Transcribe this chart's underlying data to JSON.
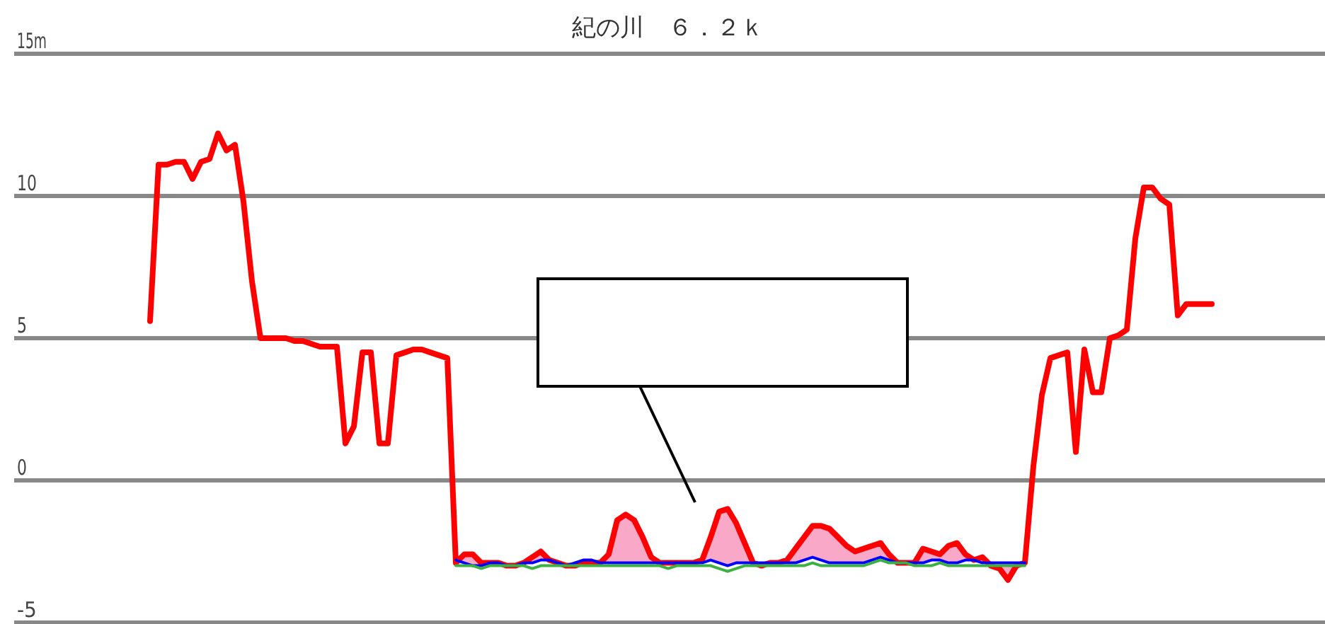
{
  "chart_data": {
    "type": "line",
    "title": "紀の川　６．２ｋ",
    "categories": [
      null,
      null,
      null,
      null,
      null,
      null,
      null,
      null,
      null,
      null,
      null,
      null,
      null,
      null,
      null,
      null,
      null,
      null,
      null,
      null,
      null,
      null,
      null,
      null,
      null,
      null,
      null,
      null,
      null,
      null,
      null,
      null,
      null,
      null,
      null,
      null,
      null,
      null,
      null,
      null,
      null,
      null,
      null,
      null,
      null,
      null,
      null,
      null,
      null,
      null,
      null,
      null,
      null,
      null,
      null,
      null,
      null,
      null,
      null,
      null,
      null,
      null,
      null,
      null,
      null,
      null,
      null,
      null,
      null,
      null,
      null,
      null,
      null,
      null,
      null,
      null,
      null,
      null,
      null,
      null,
      null,
      null,
      null,
      null,
      null,
      null,
      null,
      null,
      null,
      null,
      null,
      null,
      null,
      null,
      null,
      null,
      null,
      null,
      null,
      null,
      null,
      null,
      null,
      null,
      null,
      null,
      null,
      null,
      null,
      null,
      null,
      null,
      null,
      null,
      null,
      null,
      null,
      null,
      null,
      null,
      null,
      null,
      null,
      null,
      null,
      null,
      null,
      null,
      null,
      null,
      null,
      null,
      null,
      null,
      null,
      null,
      null,
      null,
      null,
      null,
      null,
      null,
      null,
      null,
      null,
      null,
      null,
      null,
      null,
      null,
      null,
      null,
      null,
      null,
      null
    ],
    "series": [
      {
        "color": "#ff0000",
        "values": [
          null,
          null,
          null,
          null,
          null,
          null,
          null,
          null,
          null,
          null,
          null,
          null,
          null,
          null,
          null,
          null,
          5.6,
          11.1,
          11.1,
          11.2,
          11.2,
          10.6,
          11.2,
          11.3,
          12.2,
          11.6,
          11.8,
          9.8,
          7.0,
          5.0,
          5.0,
          5.0,
          5.0,
          4.9,
          4.9,
          4.8,
          4.7,
          4.7,
          4.7,
          1.3,
          1.9,
          4.5,
          4.5,
          1.3,
          1.3,
          4.4,
          4.5,
          4.6,
          4.6,
          4.5,
          4.4,
          4.3,
          -2.9,
          -2.6,
          -2.6,
          -2.9,
          -2.9,
          -2.9,
          -3.0,
          -3.0,
          -2.9,
          -2.7,
          -2.5,
          -2.8,
          -2.9,
          -3.0,
          -3.0,
          -2.9,
          -2.9,
          -2.9,
          -2.6,
          -1.4,
          -1.2,
          -1.4,
          -2.0,
          -2.7,
          -2.9,
          -2.9,
          -2.9,
          -2.9,
          -2.9,
          -2.8,
          -2.0,
          -1.1,
          -1.0,
          -1.5,
          -2.2,
          -2.9,
          -3.0,
          -2.9,
          -2.9,
          -2.8,
          -2.4,
          -2.0,
          -1.6,
          -1.6,
          -1.7,
          -2.0,
          -2.3,
          -2.5,
          -2.4,
          -2.3,
          -2.2,
          -2.6,
          -2.9,
          -2.9,
          -2.9,
          -2.4,
          -2.5,
          -2.6,
          -2.3,
          -2.2,
          -2.6,
          -2.8,
          -2.7,
          -3.0,
          -3.1,
          -3.5,
          -3.0,
          -2.9,
          0.5,
          3.0,
          4.3,
          4.4,
          4.5,
          1.0,
          4.6,
          3.1,
          3.1,
          5.0,
          5.1,
          5.3,
          8.5,
          10.3,
          10.3,
          9.9,
          9.7,
          5.8,
          6.2,
          6.2,
          6.2,
          6.2,
          null,
          null,
          null,
          null,
          null,
          null,
          null,
          null,
          null,
          null,
          null,
          null,
          null
        ],
        "upper": [
          null,
          null,
          null,
          null,
          null,
          null,
          null,
          null,
          null,
          null,
          null,
          null,
          null,
          null,
          null,
          null,
          null,
          null,
          null,
          null,
          null,
          null,
          null,
          null,
          null,
          null,
          null,
          null,
          null,
          null,
          null,
          null,
          null,
          null,
          null,
          null,
          null,
          null,
          null,
          null,
          null,
          null,
          null,
          null,
          null,
          null,
          null,
          null,
          null,
          null,
          null,
          null,
          -2.9,
          -2.6,
          -2.6,
          -2.9,
          -2.9,
          -2.9,
          -3.0,
          -3.0,
          -2.9,
          -2.7,
          -2.5,
          -2.8,
          -2.9,
          -3.0,
          -3.0,
          -2.9,
          -2.9,
          -2.9,
          -2.6,
          -1.4,
          -1.2,
          -1.4,
          -2.0,
          -2.7,
          -2.9,
          -2.9,
          -2.9,
          -2.9,
          -2.9,
          -2.8,
          -2.0,
          -1.1,
          -1.0,
          -1.5,
          -2.2,
          -2.9,
          -3.0,
          -2.9,
          -2.9,
          -2.8,
          -2.4,
          -2.0,
          -1.6,
          -1.6,
          -1.7,
          -2.0,
          -2.3,
          -2.5,
          -2.4,
          -2.3,
          -2.2,
          -2.6,
          -2.9,
          -2.9,
          -2.9,
          -2.4,
          -2.5,
          -2.6,
          -2.3,
          -2.2,
          -2.6,
          -2.8,
          -2.7,
          -3.0,
          -3.1,
          -3.5,
          -3.0,
          -2.9,
          null,
          null,
          null,
          null,
          null,
          null,
          null,
          null,
          null,
          null,
          null,
          null,
          null,
          null,
          null,
          null,
          null,
          null,
          null,
          null,
          null,
          null,
          null,
          null,
          null,
          null,
          null,
          null,
          null,
          null,
          null,
          null,
          null,
          null,
          null
        ],
        "lower": [
          null,
          null,
          null,
          null,
          null,
          null,
          null,
          null,
          null,
          null,
          null,
          null,
          null,
          null,
          null,
          null,
          null,
          null,
          null,
          null,
          null,
          null,
          null,
          null,
          null,
          null,
          null,
          null,
          null,
          null,
          null,
          null,
          null,
          null,
          null,
          null,
          null,
          null,
          null,
          null,
          null,
          null,
          null,
          null,
          null,
          null,
          null,
          null,
          null,
          null,
          null,
          null,
          -2.8,
          -2.9,
          -3.0,
          -3.0,
          -2.9,
          -2.9,
          -3.0,
          -3.0,
          -2.9,
          -2.9,
          -2.8,
          -2.8,
          -2.9,
          -3.0,
          -2.9,
          -2.8,
          -2.8,
          -2.9,
          -2.9,
          -2.9,
          -2.9,
          -2.9,
          -2.9,
          -2.9,
          -2.9,
          -2.9,
          -2.9,
          -2.9,
          -2.9,
          -2.9,
          -2.8,
          -2.9,
          -3.0,
          -2.9,
          -2.9,
          -2.9,
          -2.9,
          -2.9,
          -2.9,
          -2.9,
          -2.9,
          -2.8,
          -2.7,
          -2.8,
          -2.9,
          -2.9,
          -2.9,
          -2.9,
          -2.9,
          -2.8,
          -2.7,
          -2.8,
          -2.9,
          -2.9,
          -2.9,
          -2.9,
          -2.8,
          -2.8,
          -2.9,
          -2.9,
          -2.8,
          -2.8,
          -2.9,
          -2.9,
          -2.9,
          -2.9,
          -2.9,
          -2.9,
          null,
          null,
          null,
          null,
          null,
          null,
          null,
          null,
          null,
          null,
          null,
          null,
          null,
          null,
          null,
          null,
          null,
          null,
          null,
          null,
          null,
          null,
          null,
          null,
          null,
          null,
          null,
          null,
          null,
          null,
          null,
          null,
          null,
          null,
          null
        ]
      },
      {
        "color": "#0000ff",
        "values": [
          null,
          null,
          null,
          null,
          null,
          null,
          null,
          null,
          null,
          null,
          null,
          null,
          null,
          null,
          null,
          null,
          null,
          null,
          null,
          null,
          null,
          null,
          null,
          null,
          null,
          null,
          null,
          null,
          null,
          null,
          null,
          null,
          null,
          null,
          null,
          null,
          null,
          null,
          null,
          null,
          null,
          null,
          null,
          null,
          null,
          null,
          null,
          null,
          null,
          null,
          null,
          null,
          -2.8,
          -2.9,
          -3.0,
          -3.0,
          -2.9,
          -2.9,
          -3.0,
          -3.0,
          -2.9,
          -2.9,
          -2.8,
          -2.8,
          -2.9,
          -3.0,
          -2.9,
          -2.8,
          -2.8,
          -2.9,
          -2.9,
          -2.9,
          -2.9,
          -2.9,
          -2.9,
          -2.9,
          -2.9,
          -2.9,
          -2.9,
          -2.9,
          -2.9,
          -2.9,
          -2.8,
          -2.9,
          -3.0,
          -2.9,
          -2.9,
          -2.9,
          -2.9,
          -2.9,
          -2.9,
          -2.9,
          -2.9,
          -2.8,
          -2.7,
          -2.8,
          -2.9,
          -2.9,
          -2.9,
          -2.9,
          -2.9,
          -2.8,
          -2.7,
          -2.8,
          -2.9,
          -2.9,
          -2.9,
          -2.9,
          -2.8,
          -2.8,
          -2.9,
          -2.9,
          -2.8,
          -2.8,
          -2.9,
          -2.9,
          -2.9,
          -2.9,
          -2.9,
          -2.9,
          null,
          null,
          null,
          null,
          null,
          null,
          null,
          null,
          null,
          null,
          null,
          null,
          null,
          null,
          null,
          null,
          null,
          null,
          null,
          null,
          null,
          null,
          null,
          null,
          null,
          null,
          null,
          null,
          null,
          null,
          null,
          null,
          null,
          null,
          null
        ]
      },
      {
        "color": "#3cb043",
        "values": [
          null,
          null,
          null,
          null,
          null,
          null,
          null,
          null,
          null,
          null,
          null,
          null,
          null,
          null,
          null,
          null,
          null,
          null,
          null,
          null,
          null,
          null,
          null,
          null,
          null,
          null,
          null,
          null,
          null,
          null,
          null,
          null,
          null,
          null,
          null,
          null,
          null,
          null,
          null,
          null,
          null,
          null,
          null,
          null,
          null,
          null,
          null,
          null,
          null,
          null,
          null,
          null,
          -3.0,
          -3.0,
          -3.0,
          -3.1,
          -3.0,
          -3.0,
          -3.0,
          -3.0,
          -3.0,
          -3.1,
          -3.0,
          -3.0,
          -3.0,
          -3.0,
          -3.0,
          -3.0,
          -3.0,
          -3.0,
          -3.0,
          -3.0,
          -3.0,
          -3.0,
          -3.0,
          -3.0,
          -3.0,
          -3.1,
          -3.0,
          -3.0,
          -3.0,
          -3.0,
          -3.0,
          -3.1,
          -3.2,
          -3.1,
          -3.0,
          -3.0,
          -3.0,
          -3.0,
          -3.0,
          -3.0,
          -3.0,
          -3.0,
          -2.9,
          -3.0,
          -3.0,
          -3.0,
          -3.0,
          -3.0,
          -3.0,
          -2.9,
          -2.8,
          -2.9,
          -2.9,
          -2.9,
          -3.0,
          -3.0,
          -3.0,
          -2.9,
          -3.0,
          -3.0,
          -3.0,
          -3.0,
          -3.0,
          -3.0,
          -3.0,
          -3.0,
          -3.0,
          -3.0,
          null,
          null,
          null,
          null,
          null,
          null,
          null,
          null,
          null,
          null,
          null,
          null,
          null,
          null,
          null,
          null,
          null,
          null,
          null,
          null,
          null,
          null,
          null,
          null,
          null,
          null,
          null,
          null,
          null,
          null,
          null,
          null,
          null,
          null,
          null
        ]
      }
    ],
    "ylim": [
      -5,
      15
    ],
    "yticks": [
      -5,
      0,
      5,
      10,
      {
        "value": 15,
        "label": "15m"
      }
    ],
    "grid": "y",
    "tick_labels": "y"
  }
}
